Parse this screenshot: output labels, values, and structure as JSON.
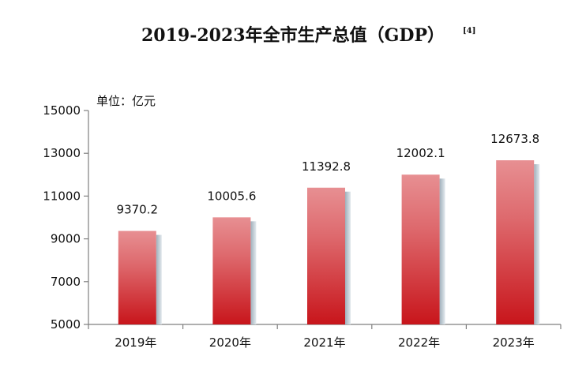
{
  "chart_data": {
    "type": "bar",
    "title": "2019-2023年全市生产总值（GDP）",
    "title_note": "[4]",
    "unit_label": "单位：亿元",
    "categories": [
      "2019年",
      "2020年",
      "2021年",
      "2022年",
      "2023年"
    ],
    "values": [
      9370.2,
      10005.6,
      11392.8,
      12002.1,
      12673.8
    ],
    "value_labels": [
      "9370.2",
      "10005.6",
      "11392.8",
      "12002.1",
      "12673.8"
    ],
    "ylim": [
      5000,
      15000
    ],
    "yticks": [
      5000,
      7000,
      9000,
      11000,
      13000,
      15000
    ],
    "grid": false,
    "legend": "none",
    "colors": {
      "bar_dark": "#c8151b",
      "bar_light": "#e78f92",
      "shadow": "#b5c3cc",
      "axis": "#7f7f7f"
    }
  }
}
